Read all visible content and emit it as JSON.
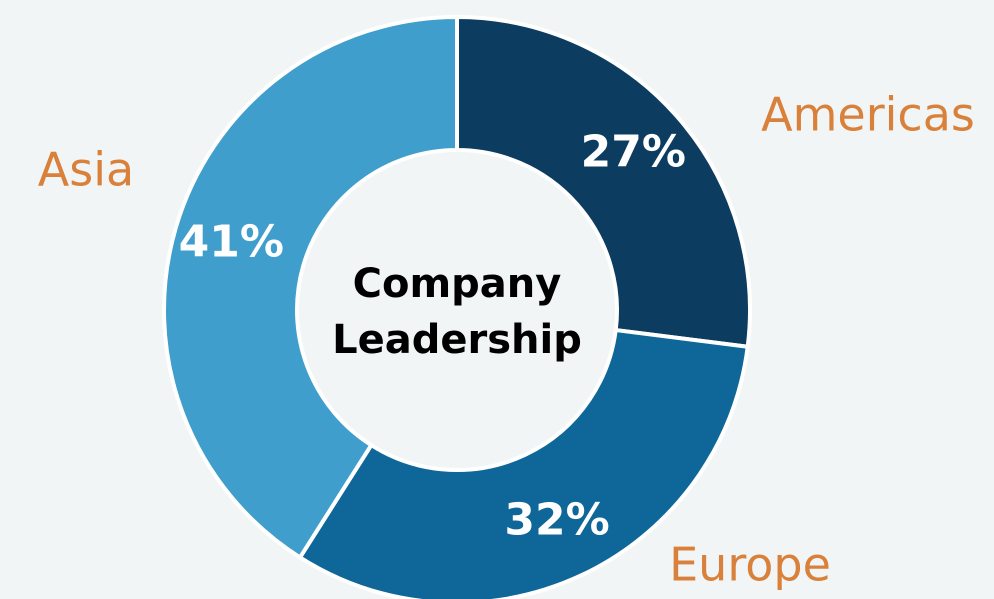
{
  "chart_data": {
    "type": "donut",
    "center_label": [
      "Company",
      "Leadership"
    ],
    "categories": [
      "Americas",
      "Europe",
      "Asia"
    ],
    "values": [
      27,
      32,
      41
    ],
    "value_labels": [
      "27%",
      "32%",
      "41%"
    ],
    "colors": [
      "#0d3c61",
      "#0e6699",
      "#3f9ecb"
    ]
  }
}
